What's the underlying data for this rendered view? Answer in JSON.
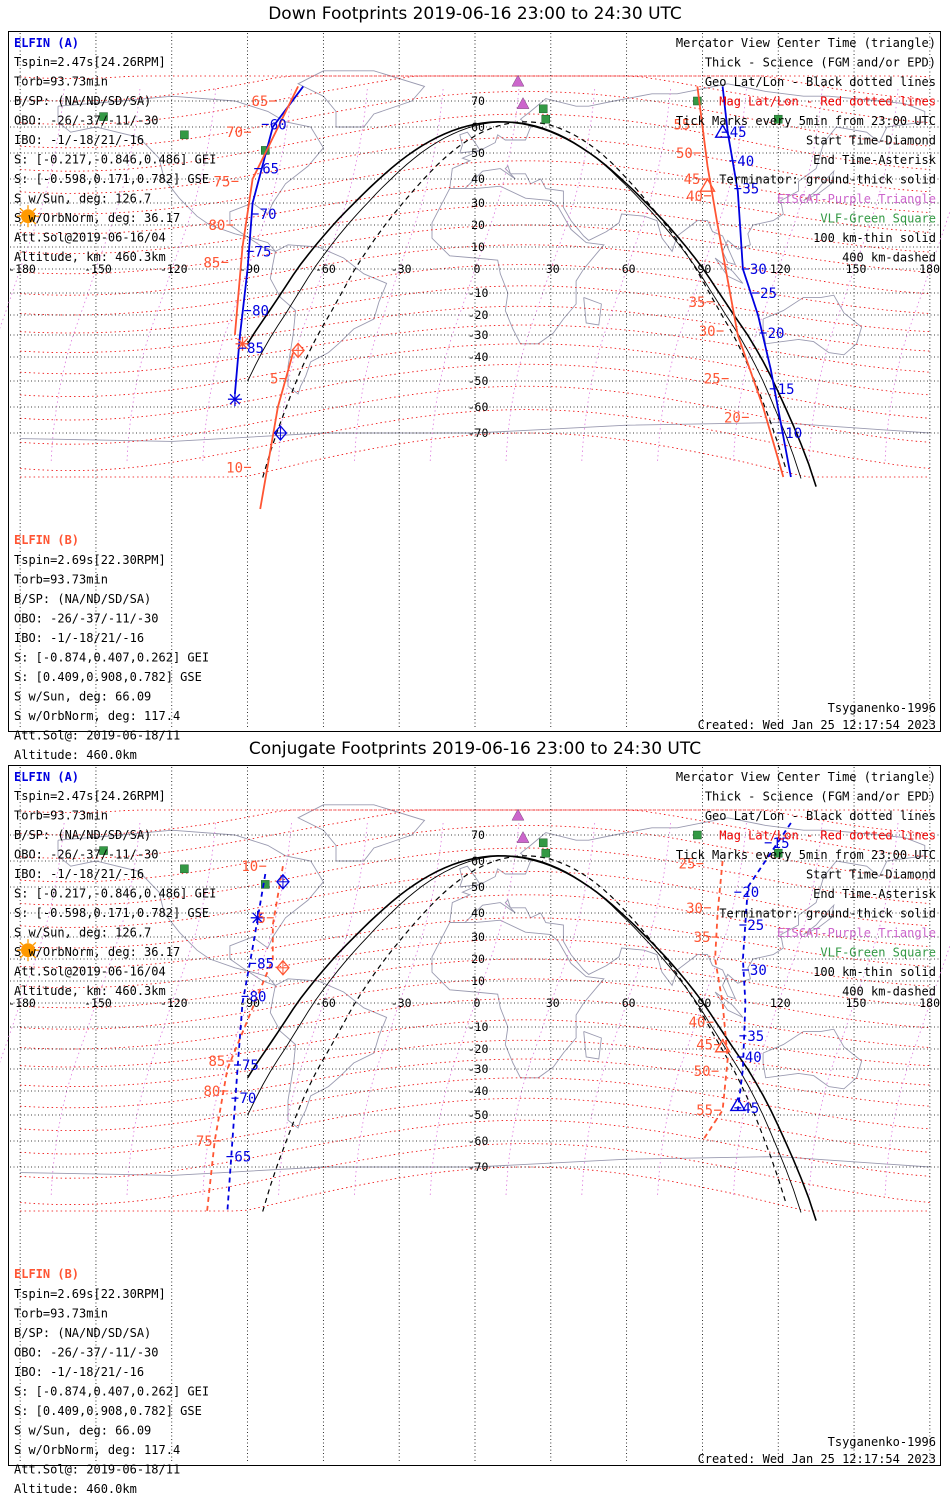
{
  "panels": [
    {
      "id": "down",
      "title": "Down Footprints 2019-06-16 23:00 to 24:30 UTC",
      "elfin_a": {
        "name": "ELFIN (A)",
        "lines": [
          "Tspin=2.47s[24.26RPM]",
          "Torb=93.73min",
          "B/SP: (NA/ND/SD/SA)",
          "OBO: -26/-37/-11/-30",
          "IBO: -1/-18/21/-16",
          "S: [-0.217,-0.846,0.486] GEI",
          "S: [-0.598,0.171,0.782] GSE",
          "S w/Sun, deg: 126.7",
          "S w/OrbNorm, deg: 36.17",
          "Att.Sol@2019-06-16/04",
          "Altitude, km: 460.3km"
        ]
      },
      "elfin_b": {
        "name": "ELFIN (B)",
        "lines": [
          "Tspin=2.69s[22.30RPM]",
          "Torb=93.73min",
          "B/SP: (NA/ND/SD/SA)",
          "OBO: -26/-37/-11/-30",
          "IBO: -1/-18/21/-16",
          "S: [-0.874,0.407,0.262] GEI",
          "S: [0.409,0.908,0.782] GSE",
          "S w/Sun, deg: 66.09",
          "S w/OrbNorm, deg: 117.4",
          "Att.Sol@: 2019-06-18/11",
          "Altitude: 460.0km"
        ]
      },
      "legend": [
        "Mercator View Center Time (triangle)",
        "Thick - Science (FGM and/or EPD)",
        "Geo Lat/Lon - Black dotted lines",
        "Mag Lat/Lon - Red dotted lines",
        "Tick Marks every 5min from 23:00 UTC",
        "Start Time-Diamond",
        "End Time-Asterisk",
        "Terminator: ground-thick solid",
        "EISCAT-Purple Triangle",
        "VLF-Green Square",
        "100 km-thin solid",
        "400 km-dashed"
      ],
      "model": "Tsyganenko-1996",
      "created": "Created: Wed Jan 25 12:17:54 2023",
      "track_a": {
        "labels": [
          {
            "t": "45",
            "lon": 100,
            "lat": 58
          },
          {
            "t": "40",
            "lon": 103,
            "lat": 47
          },
          {
            "t": "35",
            "lon": 105,
            "lat": 36
          },
          {
            "t": "30",
            "lon": 108,
            "lat": 0
          },
          {
            "t": "25",
            "lon": 112,
            "lat": -10
          },
          {
            "t": "20",
            "lon": 115,
            "lat": -29
          },
          {
            "t": "15",
            "lon": 119,
            "lat": -53
          },
          {
            "t": "10",
            "lon": 122,
            "lat": -70
          },
          {
            "t": "60",
            "lon": -82,
            "lat": 61
          },
          {
            "t": "65",
            "lon": -85,
            "lat": 44
          },
          {
            "t": "70",
            "lon": -86,
            "lat": 25
          },
          {
            "t": "75",
            "lon": -88,
            "lat": 8
          },
          {
            "t": "80",
            "lon": -89,
            "lat": -18
          },
          {
            "t": "85",
            "lon": -91,
            "lat": -36
          }
        ],
        "b_labels": [
          {
            "t": "55",
            "lon": 86,
            "lat": 61
          },
          {
            "t": "50",
            "lon": 87,
            "lat": 50
          },
          {
            "t": "45",
            "lon": 90,
            "lat": 40
          },
          {
            "t": "40",
            "lon": 91,
            "lat": 33
          },
          {
            "t": "35",
            "lon": 92,
            "lat": -14
          },
          {
            "t": "30",
            "lon": 96,
            "lat": -28
          },
          {
            "t": "25",
            "lon": 98,
            "lat": -49
          },
          {
            "t": "20",
            "lon": 106,
            "lat": -64
          },
          {
            "t": "65",
            "lon": -81,
            "lat": 70
          },
          {
            "t": "70",
            "lon": -91,
            "lat": 58
          },
          {
            "t": "75",
            "lon": -96,
            "lat": 39
          },
          {
            "t": "80",
            "lon": -98,
            "lat": 20
          },
          {
            "t": "85",
            "lon": -100,
            "lat": 3
          },
          {
            "t": "5",
            "lon": -77,
            "lat": -49
          },
          {
            "t": "10",
            "lon": -91,
            "lat": -82
          }
        ]
      }
    },
    {
      "id": "conjugate",
      "title": "Conjugate Footprints 2019-06-16 23:00 to 24:30 UTC",
      "elfin_a": {
        "name": "ELFIN (A)",
        "lines": [
          "Tspin=2.47s[24.26RPM]",
          "Torb=93.73min",
          "B/SP: (NA/ND/SD/SA)",
          "OBO: -26/-37/-11/-30",
          "IBO: -1/-18/21/-16",
          "S: [-0.217,-0.846,0.486] GEI",
          "S: [-0.598,0.171,0.782] GSE",
          "S w/Sun, deg: 126.7",
          "S w/OrbNorm, deg: 36.17",
          "Att.Sol@2019-06-16/04",
          "Altitude, km: 460.3km"
        ]
      },
      "elfin_b": {
        "name": "ELFIN (B)",
        "lines": [
          "Tspin=2.69s[22.30RPM]",
          "Torb=93.73min",
          "B/SP: (NA/ND/SD/SA)",
          "OBO: -26/-37/-11/-30",
          "IBO: -1/-18/21/-16",
          "S: [-0.874,0.407,0.262] GEI",
          "S: [0.409,0.908,0.782] GSE",
          "S w/Sun, deg: 66.09",
          "S w/OrbNorm, deg: 117.4",
          "Att.Sol@: 2019-06-18/11",
          "Altitude: 460.0km"
        ]
      },
      "legend": [
        "Mercator View Center Time (triangle)",
        "Thick - Science (FGM and/or EPD)",
        "Geo Lat/Lon - Black dotted lines",
        "Mag Lat/Lon - Red dotted lines",
        "Tick Marks every 5min from 23:00 UTC",
        "Start Time-Diamond",
        "End Time-Asterisk",
        "Terminator: ground-thick solid",
        "EISCAT-Purple Triangle",
        "VLF-Green Square",
        "100 km-thin solid",
        "400 km-dashed"
      ],
      "model": "Tsyganenko-1996",
      "created": "Created: Wed Jan 25 12:17:54 2023",
      "track_a": {
        "labels": [
          {
            "t": "15",
            "lon": 117,
            "lat": 67
          },
          {
            "t": "20",
            "lon": 105,
            "lat": 48
          },
          {
            "t": "25",
            "lon": 107,
            "lat": 35
          },
          {
            "t": "30",
            "lon": 108,
            "lat": 15
          },
          {
            "t": "35",
            "lon": 107,
            "lat": -14
          },
          {
            "t": "40",
            "lon": 106,
            "lat": -24
          },
          {
            "t": "45",
            "lon": 105,
            "lat": -47
          },
          {
            "t": "85",
            "lon": -87,
            "lat": 18
          },
          {
            "t": "80",
            "lon": -90,
            "lat": 3
          },
          {
            "t": "75",
            "lon": -93,
            "lat": -28
          },
          {
            "t": "70",
            "lon": -94,
            "lat": -43
          },
          {
            "t": "65",
            "lon": -96,
            "lat": -66
          }
        ],
        "b_labels": [
          {
            "t": "25",
            "lon": 88,
            "lat": 59
          },
          {
            "t": "30",
            "lon": 91,
            "lat": 42
          },
          {
            "t": "35",
            "lon": 94,
            "lat": 30
          },
          {
            "t": "40",
            "lon": 92,
            "lat": -8
          },
          {
            "t": "45",
            "lon": 95,
            "lat": -18
          },
          {
            "t": "50",
            "lon": 94,
            "lat": -31
          },
          {
            "t": "55",
            "lon": 95,
            "lat": -48
          },
          {
            "t": "10",
            "lon": -85,
            "lat": 58
          },
          {
            "t": "5",
            "lon": -82,
            "lat": 38
          },
          {
            "t": "85",
            "lon": -98,
            "lat": -26
          },
          {
            "t": "80",
            "lon": -100,
            "lat": -40
          },
          {
            "t": "75",
            "lon": -103,
            "lat": -60
          }
        ]
      }
    }
  ],
  "axis": {
    "lon_ticks": [
      -180,
      -150,
      -120,
      -90,
      -60,
      -30,
      0,
      30,
      60,
      90,
      120,
      150,
      180
    ],
    "lon_labels": [
      "-180",
      "-150",
      "-120",
      "-90",
      "-60",
      "-30",
      "0",
      "30",
      "60",
      "90",
      "120",
      "150",
      "180"
    ],
    "lat_ticks": [
      70,
      60,
      50,
      40,
      30,
      20,
      10,
      0,
      -10,
      -20,
      -30,
      -40,
      -50,
      -60,
      -70
    ],
    "lat_labels": [
      "70",
      "60",
      "50",
      "40",
      "30",
      "20",
      "10",
      "0",
      "-10",
      "-20",
      "-30",
      "-40",
      "-50",
      "-60",
      "-70"
    ]
  },
  "colors": {
    "elfin_a": "#0000e0",
    "elfin_b": "#ff5533",
    "mag_grid": "#ee0000",
    "geo_grid": "#000000",
    "eiscat": "#cc66cc",
    "vlf": "#339944",
    "sun": "#ff9900",
    "coast": "#9a9ab0"
  }
}
